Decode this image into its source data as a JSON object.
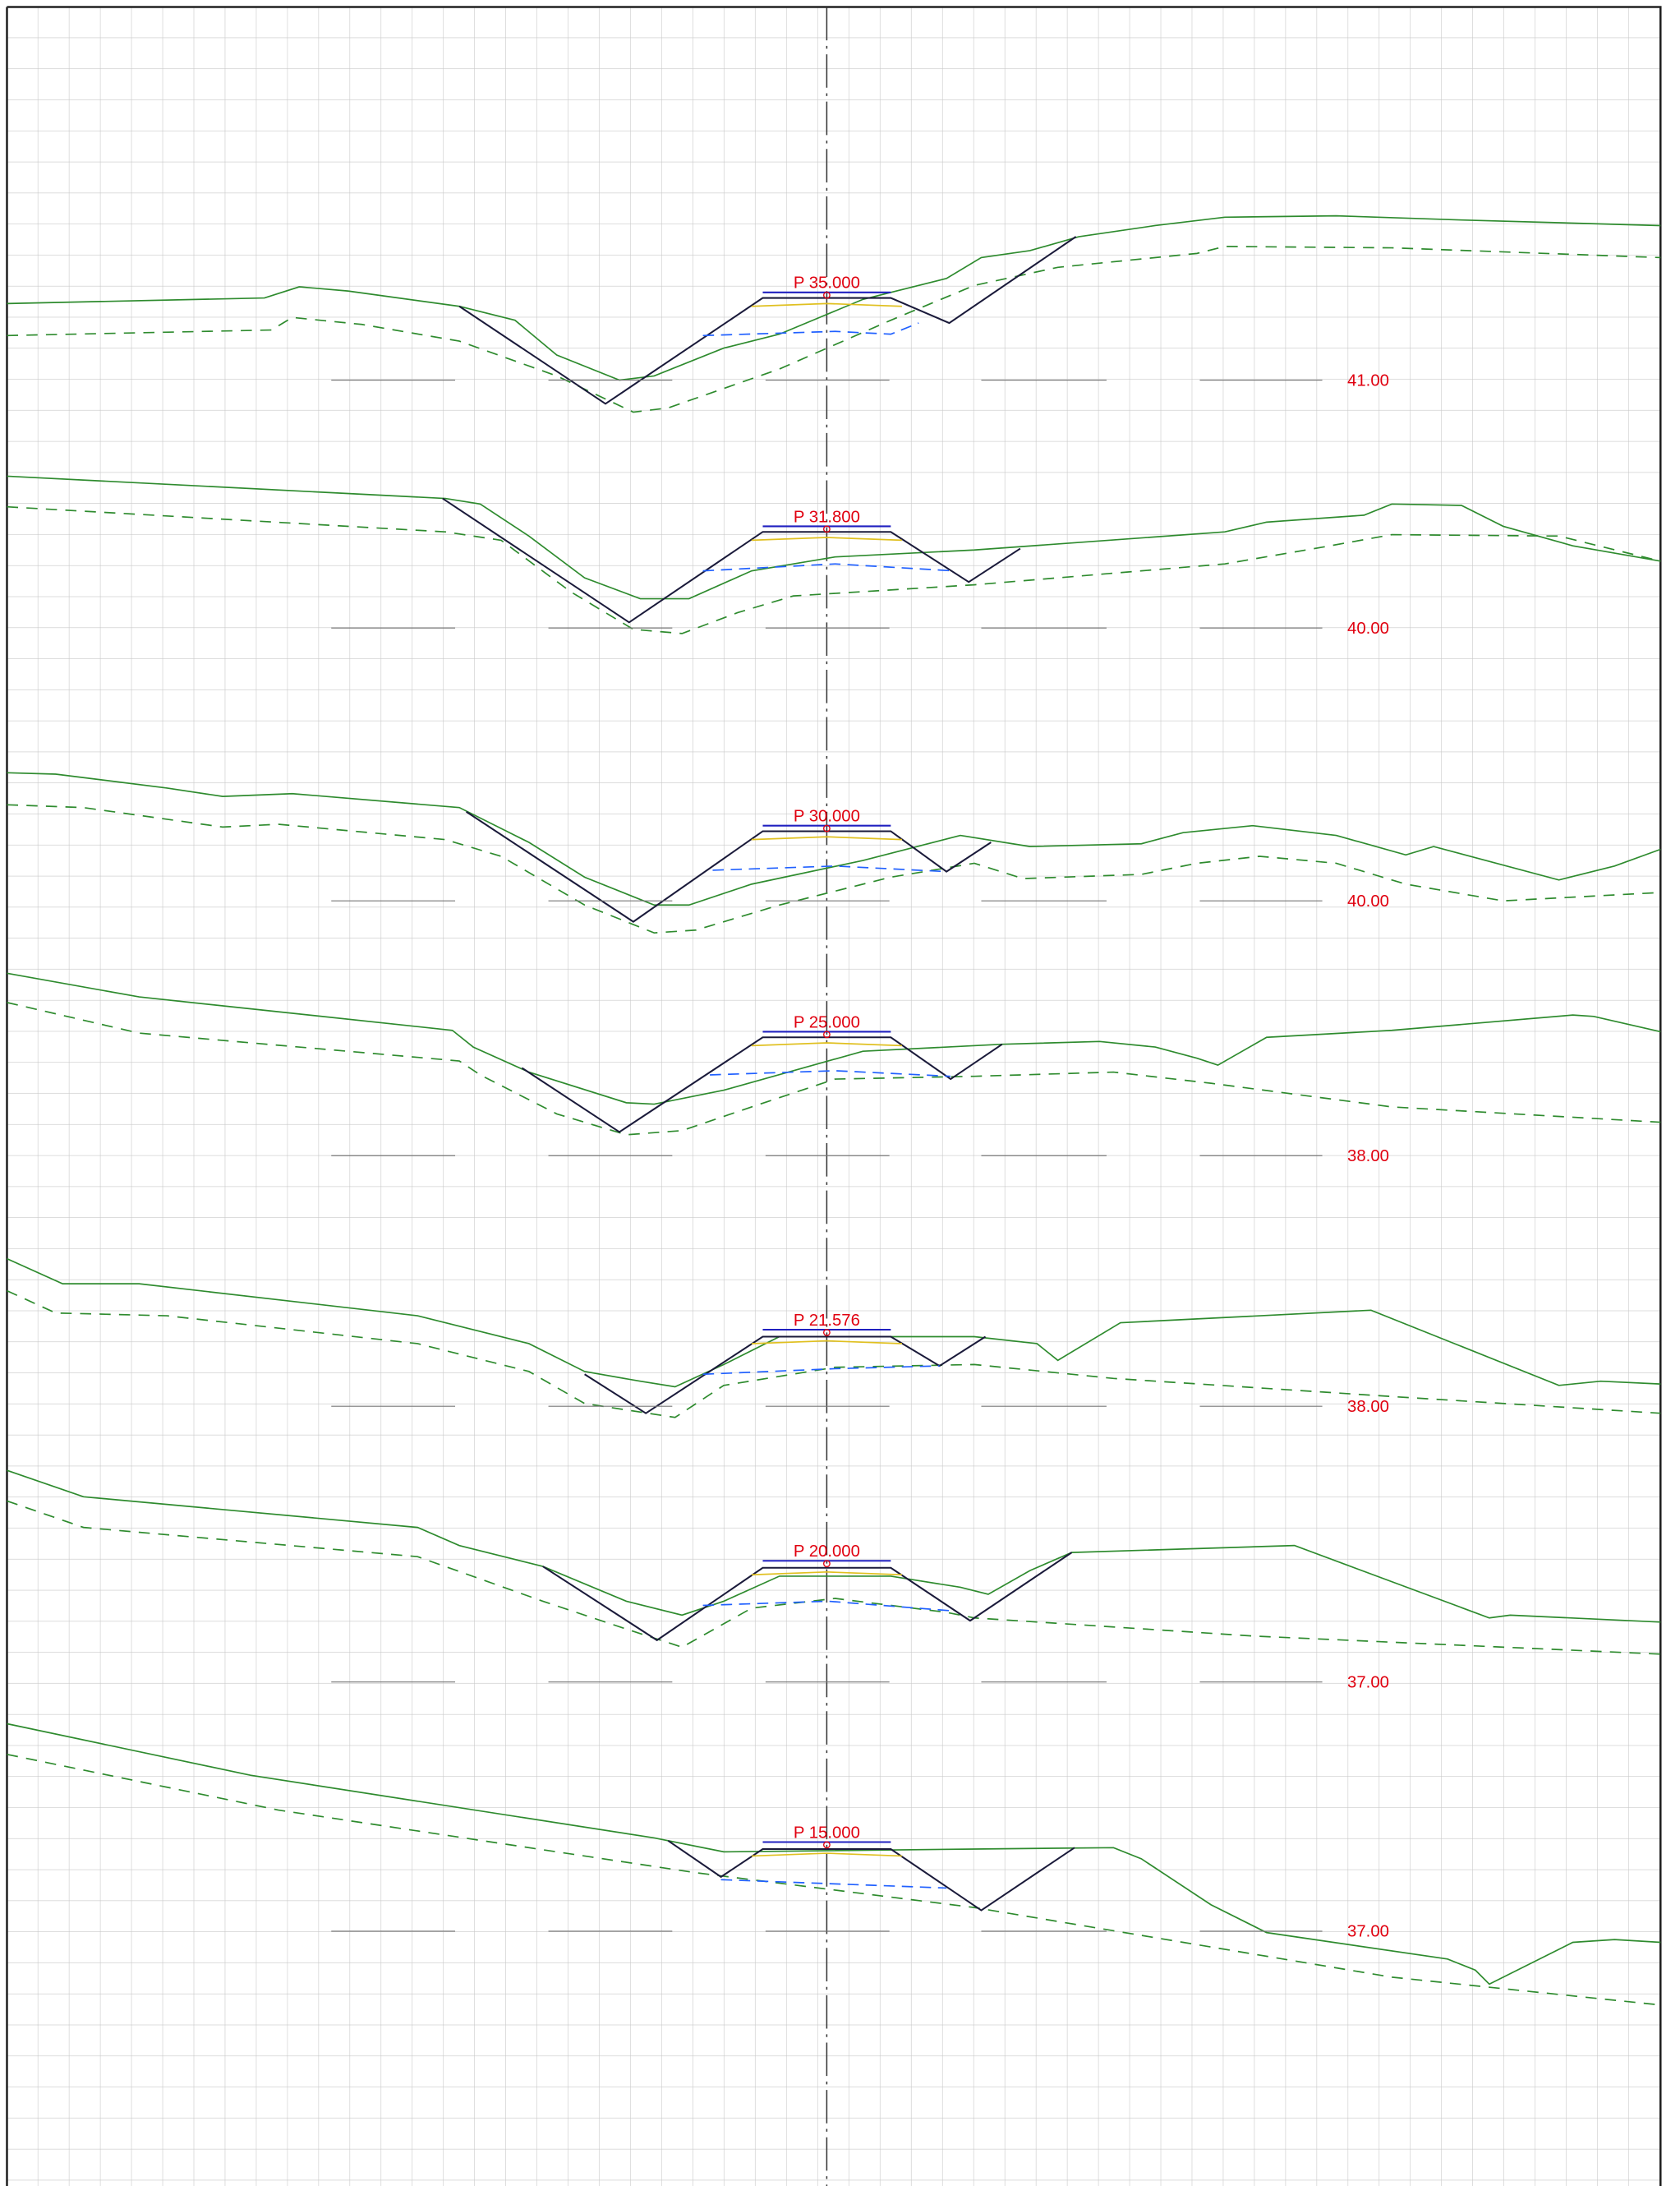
{
  "sections": [
    {
      "station": "P 35.000",
      "level": "41.00"
    },
    {
      "station": "P 31.800",
      "level": "40.00"
    },
    {
      "station": "P 30.000",
      "level": "40.00"
    },
    {
      "station": "P 25.000",
      "level": "38.00"
    },
    {
      "station": "P 21.576",
      "level": "38.00"
    },
    {
      "station": "P 20.000",
      "level": "37.00"
    },
    {
      "station": "P 15.000",
      "level": "37.00"
    }
  ]
}
